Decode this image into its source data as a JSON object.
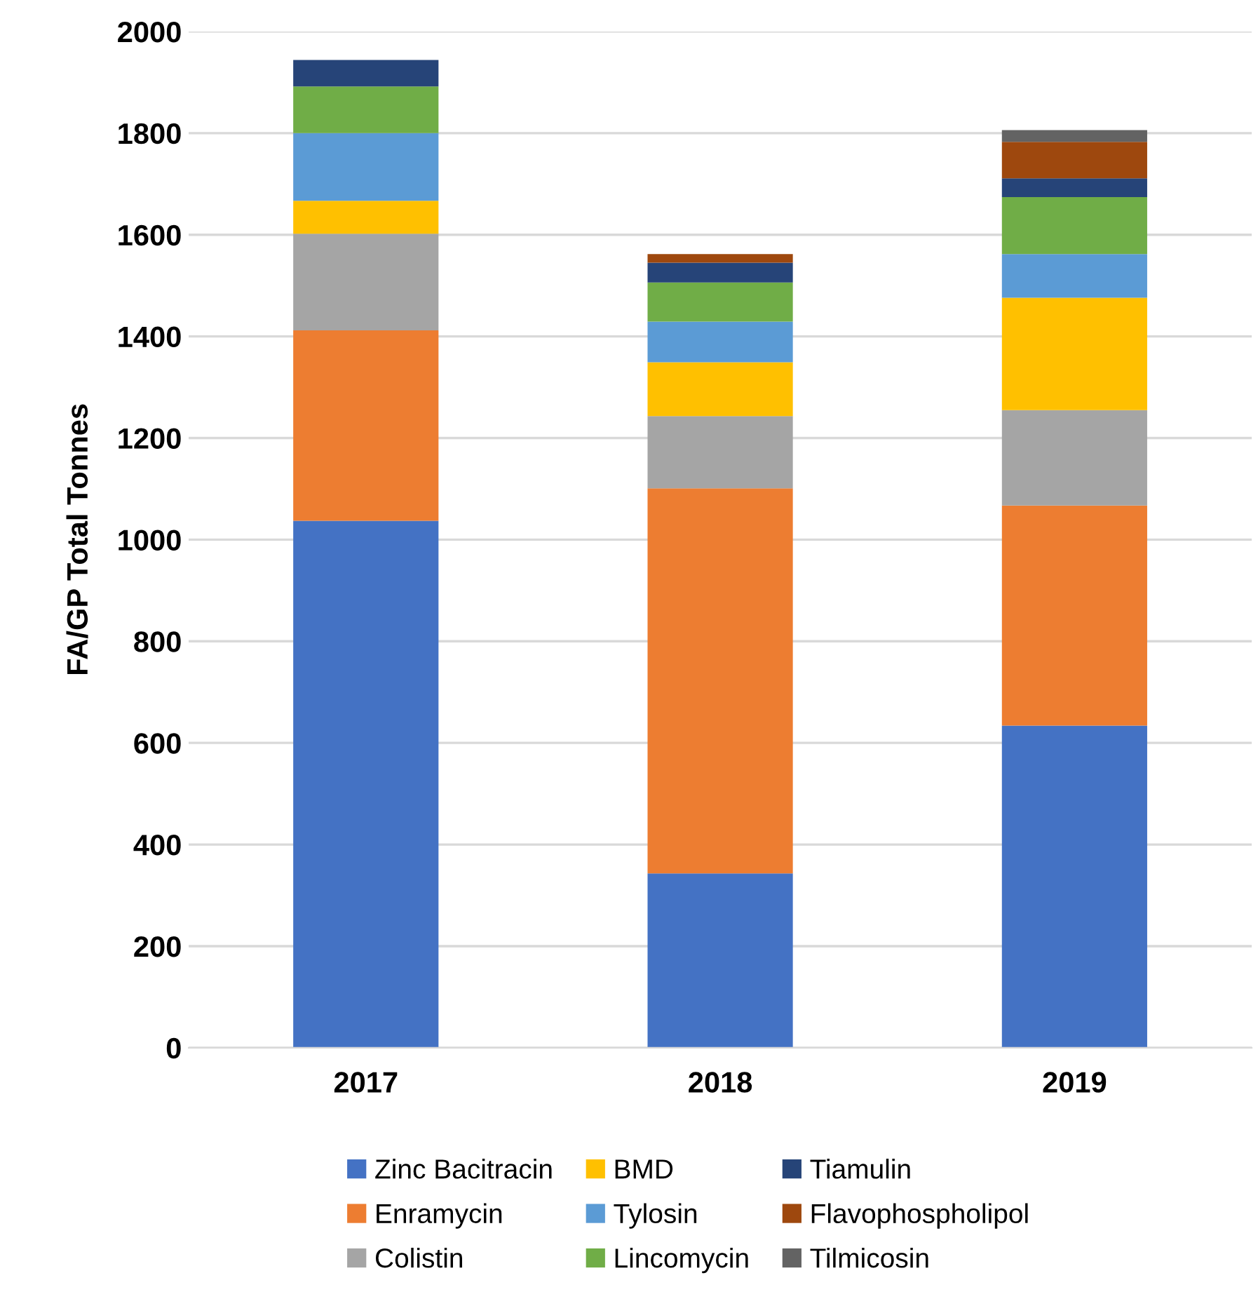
{
  "chart_data": {
    "type": "bar",
    "stacked": true,
    "ylabel": "FA/GP Total Tonnes",
    "categories": [
      "2017",
      "2018",
      "2019"
    ],
    "series": [
      {
        "name": "Zinc Bacitracin",
        "color": "#4472c4",
        "values": [
          1037,
          343,
          634
        ]
      },
      {
        "name": "Enramycin",
        "color": "#ed7d31",
        "values": [
          375,
          758,
          433
        ]
      },
      {
        "name": "Colistin",
        "color": "#a5a5a5",
        "values": [
          190,
          142,
          188
        ]
      },
      {
        "name": "BMD",
        "color": "#ffc000",
        "values": [
          65,
          106,
          221
        ]
      },
      {
        "name": "Tylosin",
        "color": "#5b9bd5",
        "values": [
          133,
          80,
          86
        ]
      },
      {
        "name": "Lincomycin",
        "color": "#70ad47",
        "values": [
          92,
          77,
          112
        ]
      },
      {
        "name": "Tiamulin",
        "color": "#264478",
        "values": [
          52,
          39,
          37
        ]
      },
      {
        "name": "Flavophospholipol",
        "color": "#9e480e",
        "values": [
          null,
          17,
          72
        ]
      },
      {
        "name": "Tilmicosin",
        "color": "#636363",
        "values": [
          null,
          null,
          23
        ]
      }
    ],
    "ylim": [
      0,
      2000
    ],
    "yticks": [
      0,
      200,
      400,
      600,
      800,
      1000,
      1200,
      1400,
      1600,
      1800,
      2000
    ],
    "grid": "y",
    "legend": "bottom"
  }
}
